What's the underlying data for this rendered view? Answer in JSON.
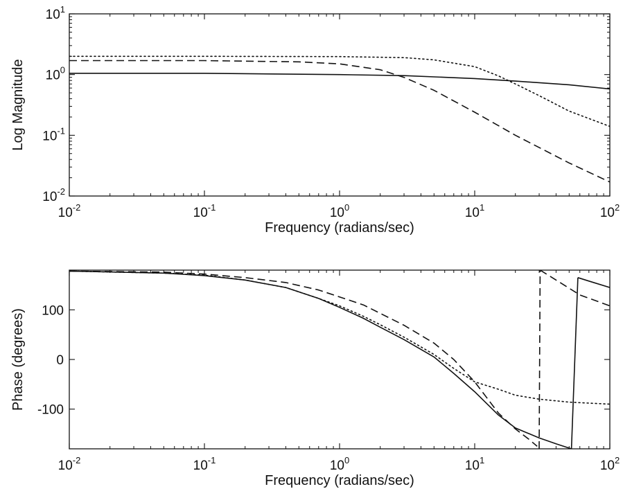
{
  "chart_data": [
    {
      "type": "line",
      "title": "",
      "xlabel": "Frequency (radians/sec)",
      "ylabel": "Log Magnitude",
      "x_scale": "log",
      "y_scale": "log",
      "xlim": [
        0.01,
        100
      ],
      "ylim": [
        0.01,
        10
      ],
      "grid": false,
      "x_ticks": [
        {
          "value": 0.01,
          "base": "10",
          "exp": "-2"
        },
        {
          "value": 0.1,
          "base": "10",
          "exp": "-1"
        },
        {
          "value": 1,
          "base": "10",
          "exp": "0"
        },
        {
          "value": 10,
          "base": "10",
          "exp": "1"
        },
        {
          "value": 100,
          "base": "10",
          "exp": "2"
        }
      ],
      "y_ticks": [
        {
          "value": 0.01,
          "base": "10",
          "exp": "-2"
        },
        {
          "value": 0.1,
          "base": "10",
          "exp": "-1"
        },
        {
          "value": 1,
          "base": "10",
          "exp": "0"
        },
        {
          "value": 10,
          "base": "10",
          "exp": "1"
        }
      ],
      "series": [
        {
          "style": "solid",
          "x": [
            0.01,
            0.1,
            1,
            3,
            10,
            20,
            50,
            100
          ],
          "y": [
            1.05,
            1.05,
            1.0,
            0.96,
            0.86,
            0.78,
            0.68,
            0.58
          ]
        },
        {
          "style": "dashed",
          "x": [
            0.01,
            0.1,
            0.5,
            1,
            2,
            3,
            5,
            10,
            20,
            50,
            100
          ],
          "y": [
            1.7,
            1.7,
            1.62,
            1.5,
            1.2,
            0.9,
            0.55,
            0.24,
            0.1,
            0.035,
            0.017
          ]
        },
        {
          "style": "dotted",
          "x": [
            0.01,
            0.1,
            1,
            3,
            5,
            10,
            15,
            20,
            30,
            50,
            100
          ],
          "y": [
            2.0,
            2.0,
            1.98,
            1.9,
            1.75,
            1.35,
            0.95,
            0.7,
            0.45,
            0.25,
            0.14
          ]
        }
      ]
    },
    {
      "type": "line",
      "title": "",
      "xlabel": "Frequency (radians/sec)",
      "ylabel": "Phase (degrees)",
      "x_scale": "log",
      "y_scale": "linear",
      "xlim": [
        0.01,
        100
      ],
      "ylim": [
        -180,
        180
      ],
      "grid": false,
      "x_ticks": [
        {
          "value": 0.01,
          "base": "10",
          "exp": "-2"
        },
        {
          "value": 0.1,
          "base": "10",
          "exp": "-1"
        },
        {
          "value": 1,
          "base": "10",
          "exp": "0"
        },
        {
          "value": 10,
          "base": "10",
          "exp": "1"
        },
        {
          "value": 100,
          "base": "10",
          "exp": "2"
        }
      ],
      "y_ticks": [
        {
          "value": 100,
          "label": "100"
        },
        {
          "value": 0,
          "label": "0"
        },
        {
          "value": -100,
          "label": "-100"
        }
      ],
      "series": [
        {
          "style": "solid",
          "segments": [
            {
              "x": [
                0.01,
                0.05,
                0.1,
                0.2,
                0.4,
                0.7,
                1,
                1.5,
                2,
                3,
                5,
                7,
                10,
                15,
                20,
                30,
                40,
                52
              ],
              "y": [
                178,
                174,
                169,
                160,
                145,
                123,
                105,
                83,
                65,
                40,
                5,
                -28,
                -65,
                -112,
                -138,
                -158,
                -170,
                -180
              ]
            },
            {
              "x": [
                52,
                58
              ],
              "y": [
                -180,
                165
              ]
            },
            {
              "x": [
                58,
                70,
                100
              ],
              "y": [
                165,
                158,
                145
              ]
            }
          ]
        },
        {
          "style": "dashed",
          "segments": [
            {
              "x": [
                0.01,
                0.05,
                0.1,
                0.2,
                0.4,
                0.7,
                1,
                1.5,
                2,
                3,
                5,
                7,
                10,
                15,
                20,
                25,
                29
              ],
              "y": [
                178,
                176,
                172,
                165,
                155,
                140,
                126,
                110,
                93,
                69,
                33,
                0,
                -45,
                -108,
                -140,
                -160,
                -175
              ]
            },
            {
              "x": [
                30,
                30.5
              ],
              "y": [
                -180,
                180
              ]
            },
            {
              "x": [
                30.5,
                40,
                60,
                100
              ],
              "y": [
                180,
                160,
                130,
                108
              ]
            }
          ]
        },
        {
          "style": "dotted",
          "segments": [
            {
              "x": [
                0.01,
                0.05,
                0.1,
                0.2,
                0.4,
                0.7,
                1,
                1.5,
                2,
                3,
                5,
                7,
                10,
                15,
                20,
                30,
                50,
                100
              ],
              "y": [
                178,
                174,
                170,
                160,
                145,
                123,
                108,
                87,
                70,
                45,
                10,
                -18,
                -45,
                -60,
                -72,
                -80,
                -86,
                -90
              ]
            }
          ]
        }
      ]
    }
  ]
}
